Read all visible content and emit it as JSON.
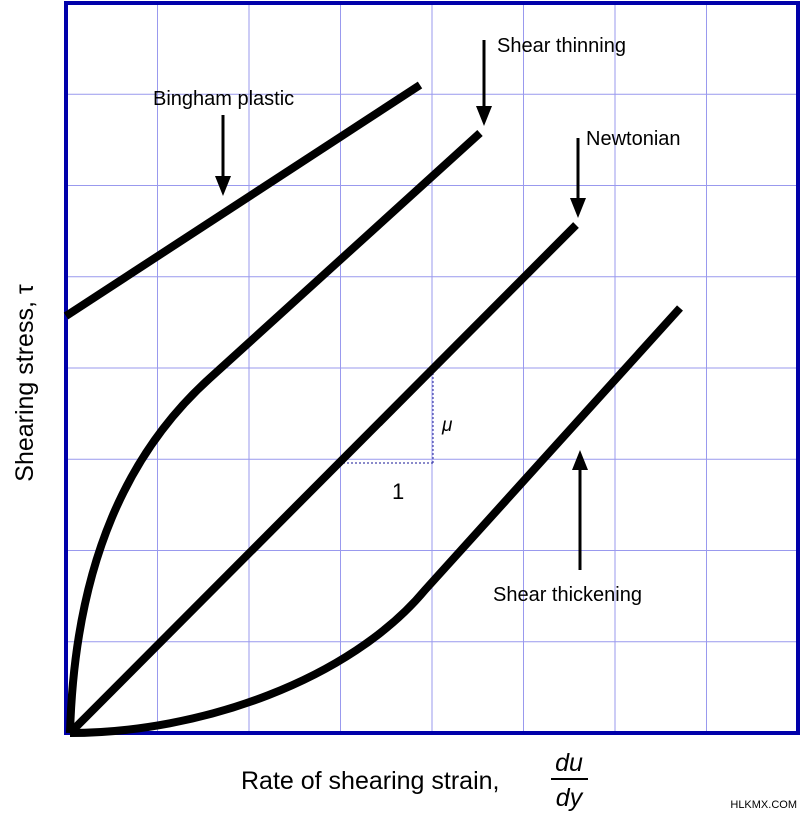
{
  "colors": {
    "frame": "#0000aa",
    "grid": "#9999ee",
    "curve": "#000000",
    "slope_marker": "#4444aa"
  },
  "grid": {
    "columns": 8,
    "rows": 8
  },
  "labels": {
    "bingham": "Bingham plastic",
    "shear_thinning": "Shear thinning",
    "newtonian": "Newtonian",
    "shear_thickening": "Shear thickening",
    "slope_mu": "μ",
    "slope_run": "1"
  },
  "axes": {
    "y_label": "Shearing stress, τ",
    "x_label": "Rate of shearing strain,",
    "x_frac_num": "du",
    "x_frac_den": "dy"
  },
  "watermark": "HLKMX.COM"
}
